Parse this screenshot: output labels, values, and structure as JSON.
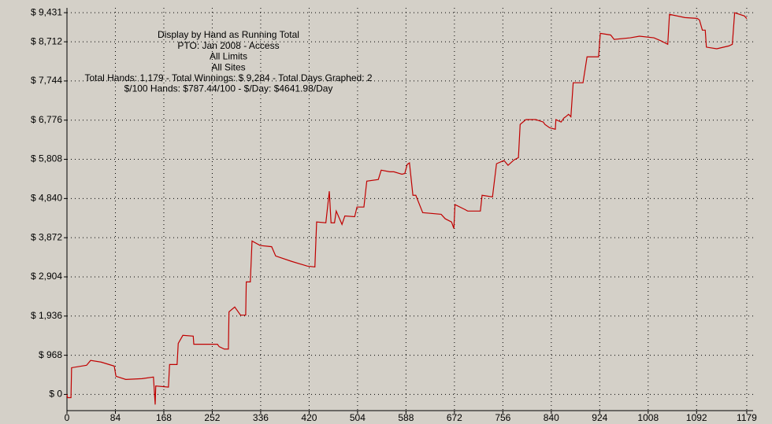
{
  "chart_data": {
    "type": "line",
    "annotations": [
      "Display by Hand as Running Total",
      "PTO: Jan 2008 - Access",
      "All Limits",
      "All Sites",
      "Total Hands: 1,179 - Total Winnings: $ 9,284 - Total Days Graphed: 2",
      "$/100 Hands: $787.44/100 - $/Day: $4641.98/Day"
    ],
    "color": "#c00000",
    "grid": true,
    "xlim": [
      0,
      1190
    ],
    "ylim": [
      -400,
      9550
    ],
    "xticks": [
      0,
      84,
      168,
      252,
      336,
      420,
      504,
      588,
      672,
      756,
      840,
      924,
      1008,
      1092,
      1179
    ],
    "yticks": [
      {
        "value": 0,
        "label": "$ 0"
      },
      {
        "value": 968,
        "label": "$ 968"
      },
      {
        "value": 1936,
        "label": "$ 1,936"
      },
      {
        "value": 2904,
        "label": "$ 2,904"
      },
      {
        "value": 3872,
        "label": "$ 3,872"
      },
      {
        "value": 4840,
        "label": "$ 4,840"
      },
      {
        "value": 5808,
        "label": "$ 5,808"
      },
      {
        "value": 6776,
        "label": "$ 6,776"
      },
      {
        "value": 7744,
        "label": "$ 7,744"
      },
      {
        "value": 8712,
        "label": "$ 8,712"
      },
      {
        "value": 9431,
        "label": "$ 9,431"
      }
    ],
    "x": [
      0,
      1,
      7,
      8,
      34,
      41,
      59,
      82,
      85,
      102,
      130,
      150,
      153,
      154,
      176,
      178,
      191,
      193,
      201,
      219,
      220,
      261,
      264,
      273,
      280,
      281,
      291,
      301,
      310,
      311,
      318,
      321,
      335,
      355,
      362,
      389,
      417,
      430,
      433,
      449,
      455,
      458,
      464,
      467,
      477,
      482,
      499,
      503,
      515,
      520,
      540,
      545,
      560,
      567,
      581,
      586,
      590,
      594,
      600,
      605,
      617,
      649,
      656,
      667,
      671,
      673,
      690,
      695,
      717,
      720,
      738,
      745,
      758,
      765,
      775,
      783,
      786,
      796,
      813,
      826,
      829,
      837,
      847,
      848,
      857,
      862,
      865,
      870,
      874,
      878,
      895,
      902,
      922,
      925,
      943,
      949,
      977,
      993,
      1018,
      1031,
      1042,
      1045,
      1072,
      1093,
      1097,
      1102,
      1107,
      1109,
      1127,
      1148,
      1154,
      1158,
      1175,
      1179
    ],
    "values": [
      0,
      -80,
      -80,
      660,
      720,
      840,
      800,
      700,
      450,
      370,
      390,
      430,
      -250,
      210,
      180,
      740,
      740,
      1260,
      1460,
      1440,
      1240,
      1240,
      1180,
      1120,
      1120,
      2040,
      2160,
      1960,
      1960,
      2780,
      2780,
      3790,
      3680,
      3650,
      3420,
      3290,
      3170,
      3150,
      4260,
      4240,
      5020,
      4240,
      4240,
      4530,
      4200,
      4410,
      4390,
      4630,
      4630,
      5270,
      5310,
      5540,
      5500,
      5500,
      5440,
      5460,
      5680,
      5720,
      4920,
      4920,
      4490,
      4450,
      4340,
      4260,
      4100,
      4690,
      4570,
      4530,
      4530,
      4920,
      4880,
      5700,
      5780,
      5660,
      5790,
      5850,
      6670,
      6790,
      6790,
      6730,
      6670,
      6590,
      6550,
      6790,
      6730,
      6830,
      6860,
      6920,
      6860,
      7700,
      7700,
      8340,
      8340,
      8920,
      8880,
      8770,
      8810,
      8850,
      8810,
      8730,
      8650,
      9390,
      9310,
      9290,
      9250,
      9000,
      9000,
      8580,
      8540,
      8610,
      8650,
      9430,
      9350,
      9284
    ]
  }
}
